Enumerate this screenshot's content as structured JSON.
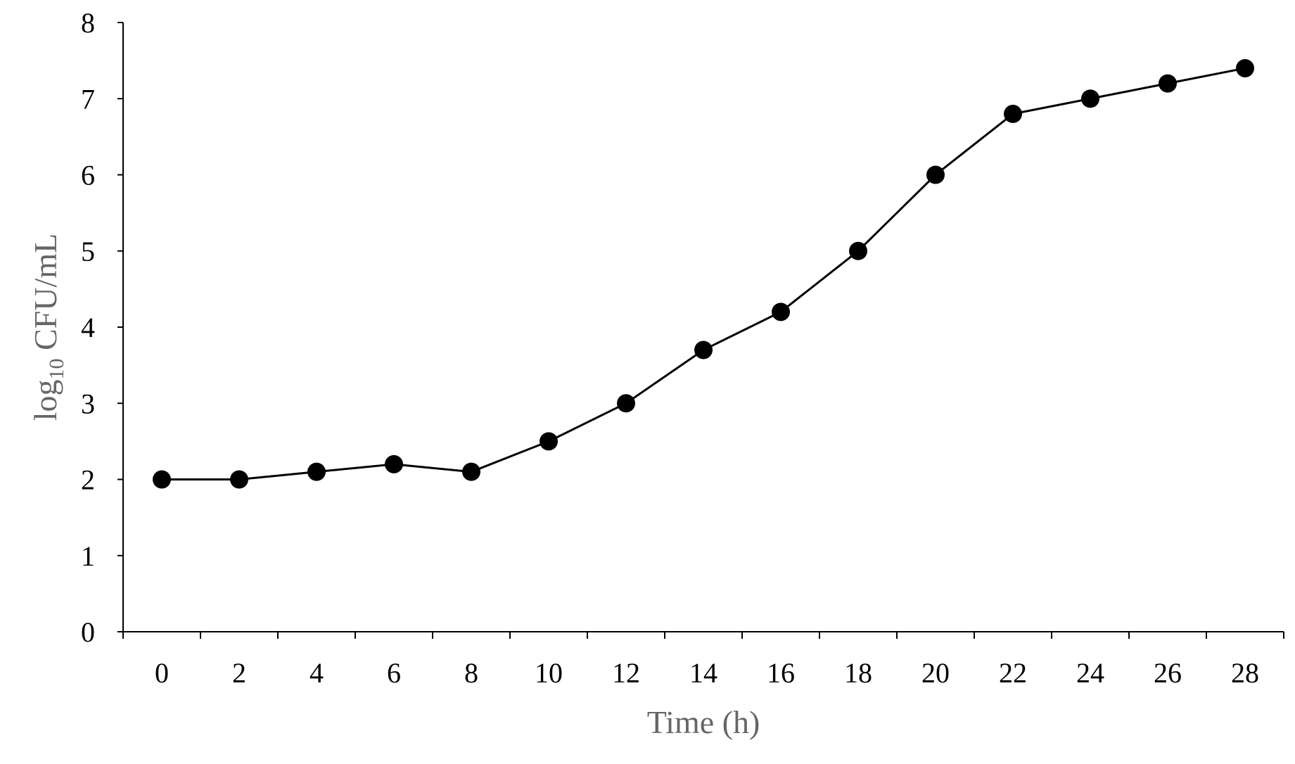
{
  "chart_data": {
    "type": "line",
    "title": "",
    "xlabel": "Time (h)",
    "ylabel": {
      "prefix": "log",
      "subscript": "10",
      "suffix": " CFU/mL"
    },
    "x": [
      0,
      2,
      4,
      6,
      8,
      10,
      12,
      14,
      16,
      18,
      20,
      22,
      24,
      26,
      28
    ],
    "series": [
      {
        "name": "log10 CFU/mL",
        "values": [
          2.0,
          2.0,
          2.1,
          2.2,
          2.1,
          2.5,
          3.0,
          3.7,
          4.2,
          5.0,
          6.0,
          6.8,
          7.0,
          7.2,
          7.4
        ],
        "color": "#000000",
        "marker": "circle"
      }
    ],
    "ylim": [
      0,
      8
    ],
    "yticks": [
      "0",
      "1",
      "2",
      "3",
      "4",
      "5",
      "6",
      "7",
      "8"
    ],
    "xticks": [
      "0",
      "2",
      "4",
      "6",
      "8",
      "10",
      "12",
      "14",
      "16",
      "18",
      "20",
      "22",
      "24",
      "26",
      "28"
    ],
    "grid": false,
    "legend": "none"
  }
}
